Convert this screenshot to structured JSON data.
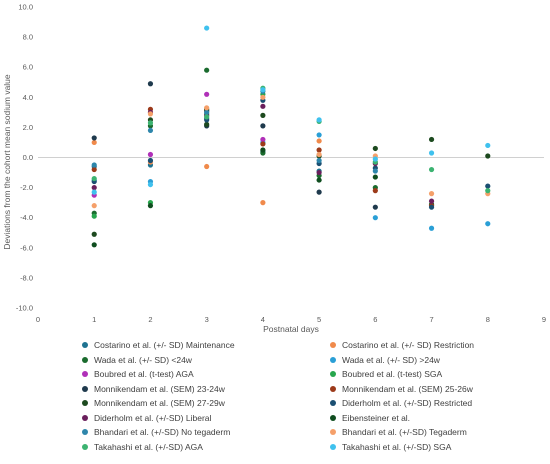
{
  "chart_data": {
    "type": "scatter",
    "title": "",
    "xlabel": "Postnatal days",
    "ylabel": "Deviations from the cohort mean sodium value",
    "xlim": [
      0,
      9
    ],
    "ylim": [
      -10,
      10
    ],
    "xticks": [
      "0",
      "1",
      "2",
      "3",
      "4",
      "5",
      "6",
      "7",
      "8",
      "9"
    ],
    "yticks": [
      "-10.0",
      "-8.0",
      "-6.0",
      "-4.0",
      "-2.0",
      "0.0",
      "2.0",
      "4.0",
      "6.0",
      "8.0",
      "10.0"
    ],
    "grid": false,
    "legend_position": "bottom",
    "series": [
      {
        "name": "Costarino et al.  (+/- SD) Maintenance",
        "color": "#1f7391",
        "points": [
          [
            1,
            -0.6
          ],
          [
            2,
            -0.5
          ],
          [
            3,
            2.6
          ],
          [
            4,
            0.4
          ],
          [
            5,
            -0.9
          ]
        ]
      },
      {
        "name": "Costarino et al.  (+/- SD) Restriction",
        "color": "#f08a4b",
        "points": [
          [
            1,
            1.0
          ],
          [
            2,
            -0.3
          ],
          [
            3,
            -0.6
          ],
          [
            4,
            -3.0
          ],
          [
            5,
            1.1
          ]
        ]
      },
      {
        "name": "Wada et al.  (+/- SD) <24w",
        "color": "#1a6b2e",
        "points": [
          [
            1,
            -3.7
          ],
          [
            2,
            2.1
          ],
          [
            3,
            5.8
          ],
          [
            4,
            0.3
          ],
          [
            5,
            -1.2
          ],
          [
            6,
            -2.0
          ],
          [
            7,
            -3.1
          ]
        ]
      },
      {
        "name": "Wada et al.  (+/- SD) >24w",
        "color": "#2a9fd6",
        "points": [
          [
            1,
            -1.5
          ],
          [
            2,
            -1.6
          ],
          [
            3,
            3.1
          ],
          [
            4,
            1.0
          ],
          [
            5,
            1.5
          ],
          [
            6,
            -4.0
          ],
          [
            7,
            -4.7
          ],
          [
            8,
            -4.4
          ]
        ]
      },
      {
        "name": "Boubred et al.  (t-test) AGA",
        "color": "#b030b8",
        "points": [
          [
            1,
            -2.5
          ],
          [
            2,
            0.2
          ],
          [
            3,
            4.2
          ],
          [
            4,
            1.2
          ]
        ]
      },
      {
        "name": "Boubred et al.  (t-test) SGA",
        "color": "#27a64d",
        "points": [
          [
            1,
            -3.9
          ],
          [
            2,
            -3.0
          ],
          [
            3,
            2.9
          ],
          [
            4,
            4.2
          ]
        ]
      },
      {
        "name": "Monnikendam et al.  (SEM) 23-24w",
        "color": "#1f3a4d",
        "points": [
          [
            1,
            1.3
          ],
          [
            2,
            4.9
          ],
          [
            3,
            2.1
          ],
          [
            4,
            2.1
          ],
          [
            5,
            -2.3
          ],
          [
            6,
            -3.3
          ]
        ]
      },
      {
        "name": "Monnikendam et al.  (SEM) 25-26w",
        "color": "#9c3a1a",
        "points": [
          [
            1,
            -0.8
          ],
          [
            2,
            3.2
          ],
          [
            3,
            3.1
          ],
          [
            4,
            0.9
          ],
          [
            5,
            0.5
          ],
          [
            6,
            -2.2
          ],
          [
            7,
            -3.2
          ]
        ]
      },
      {
        "name": "Monnikendam et al.  (SEM) 27-29w",
        "color": "#1d4a1f",
        "points": [
          [
            1,
            -5.1
          ],
          [
            2,
            2.5
          ],
          [
            3,
            2.2
          ],
          [
            4,
            2.8
          ],
          [
            5,
            0.1
          ],
          [
            6,
            0.6
          ],
          [
            7,
            1.2
          ],
          [
            8,
            0.1
          ]
        ]
      },
      {
        "name": "Diderholm et al.  (+/-SD) Restricted",
        "color": "#1b4f72",
        "points": [
          [
            1,
            -1.6
          ],
          [
            2,
            -0.2
          ],
          [
            3,
            2.5
          ],
          [
            4,
            3.8
          ],
          [
            5,
            -0.4
          ],
          [
            6,
            -0.7
          ],
          [
            7,
            -3.3
          ],
          [
            8,
            -1.9
          ]
        ]
      },
      {
        "name": "Diderholm et al.  (+/-SD) Liberal",
        "color": "#6a1f5c",
        "points": [
          [
            1,
            -2.0
          ],
          [
            2,
            3.0
          ],
          [
            3,
            2.8
          ],
          [
            4,
            3.4
          ],
          [
            5,
            -1.0
          ],
          [
            6,
            -0.4
          ],
          [
            7,
            -2.9
          ]
        ]
      },
      {
        "name": "Eibensteiner et al.",
        "color": "#0f4d1f",
        "points": [
          [
            1,
            -5.8
          ],
          [
            2,
            -3.2
          ],
          [
            3,
            3.2
          ],
          [
            4,
            0.5
          ],
          [
            5,
            -1.5
          ],
          [
            6,
            -1.3
          ]
        ]
      },
      {
        "name": "Bhandari et al.  (+/-SD) No tegaderm",
        "color": "#2e86ab",
        "points": [
          [
            1,
            -0.5
          ],
          [
            2,
            1.8
          ],
          [
            3,
            3.0
          ],
          [
            4,
            4.4
          ],
          [
            5,
            -0.2
          ],
          [
            6,
            -0.9
          ]
        ]
      },
      {
        "name": "Bhandari et al.  (+/-SD) Tegaderm",
        "color": "#f5a06a",
        "points": [
          [
            1,
            -3.2
          ],
          [
            2,
            2.9
          ],
          [
            3,
            3.3
          ],
          [
            4,
            4.0
          ],
          [
            5,
            0.2
          ],
          [
            6,
            0.1
          ],
          [
            7,
            -2.4
          ],
          [
            8,
            -2.4
          ]
        ]
      },
      {
        "name": "Takahashi et al.  (+/-SD) AGA",
        "color": "#3cb371",
        "points": [
          [
            1,
            -1.4
          ],
          [
            2,
            2.3
          ],
          [
            3,
            2.7
          ],
          [
            4,
            4.6
          ],
          [
            5,
            2.4
          ],
          [
            6,
            -0.3
          ],
          [
            7,
            -0.8
          ],
          [
            8,
            -2.2
          ]
        ]
      },
      {
        "name": "Takahashi et al.  (+/-SD) SGA",
        "color": "#3fc1ee",
        "points": [
          [
            1,
            -2.3
          ],
          [
            2,
            -1.8
          ],
          [
            3,
            8.6
          ],
          [
            4,
            4.5
          ],
          [
            5,
            2.5
          ],
          [
            6,
            -0.1
          ],
          [
            7,
            0.3
          ],
          [
            8,
            0.8
          ]
        ]
      }
    ]
  }
}
